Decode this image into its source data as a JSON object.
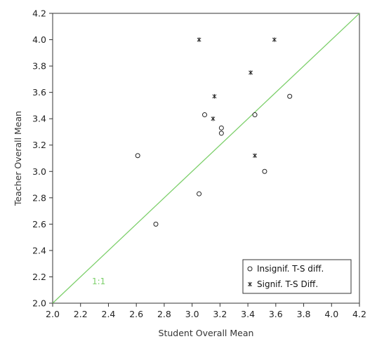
{
  "chart_data": {
    "type": "scatter",
    "xlabel": "Student Overall Mean",
    "ylabel": "Teacher Overall Mean",
    "xlim": [
      2.0,
      4.2
    ],
    "ylim": [
      2.0,
      4.2
    ],
    "x_ticks": [
      "2.0",
      "2.2",
      "2.4",
      "2.6",
      "2.8",
      "3.0",
      "3.2",
      "3.4",
      "3.6",
      "3.8",
      "4.0",
      "4.2"
    ],
    "y_ticks": [
      "2.0",
      "2.2",
      "2.4",
      "2.6",
      "2.8",
      "3.0",
      "3.2",
      "3.4",
      "3.6",
      "3.8",
      "4.0",
      "4.2"
    ],
    "grid": false,
    "legend_position": "bottom-right",
    "reference_line": {
      "label": "1:1",
      "x": [
        2.0,
        4.2
      ],
      "y": [
        2.0,
        4.2
      ],
      "color": "#7ccf6a"
    },
    "series": [
      {
        "name": "Insignif. T-S diff.",
        "marker": "circle",
        "points": [
          {
            "x": 2.61,
            "y": 3.12
          },
          {
            "x": 2.74,
            "y": 2.6
          },
          {
            "x": 3.05,
            "y": 2.83
          },
          {
            "x": 3.09,
            "y": 3.43
          },
          {
            "x": 3.21,
            "y": 3.33
          },
          {
            "x": 3.21,
            "y": 3.29
          },
          {
            "x": 3.45,
            "y": 3.43
          },
          {
            "x": 3.52,
            "y": 3.0
          },
          {
            "x": 3.7,
            "y": 3.57
          }
        ]
      },
      {
        "name": "Signif. T-S Diff.",
        "marker": "asterisk",
        "points": [
          {
            "x": 3.05,
            "y": 4.0
          },
          {
            "x": 3.59,
            "y": 4.0
          },
          {
            "x": 3.42,
            "y": 3.75
          },
          {
            "x": 3.16,
            "y": 3.57
          },
          {
            "x": 3.15,
            "y": 3.4
          },
          {
            "x": 3.45,
            "y": 3.12
          }
        ]
      }
    ]
  }
}
